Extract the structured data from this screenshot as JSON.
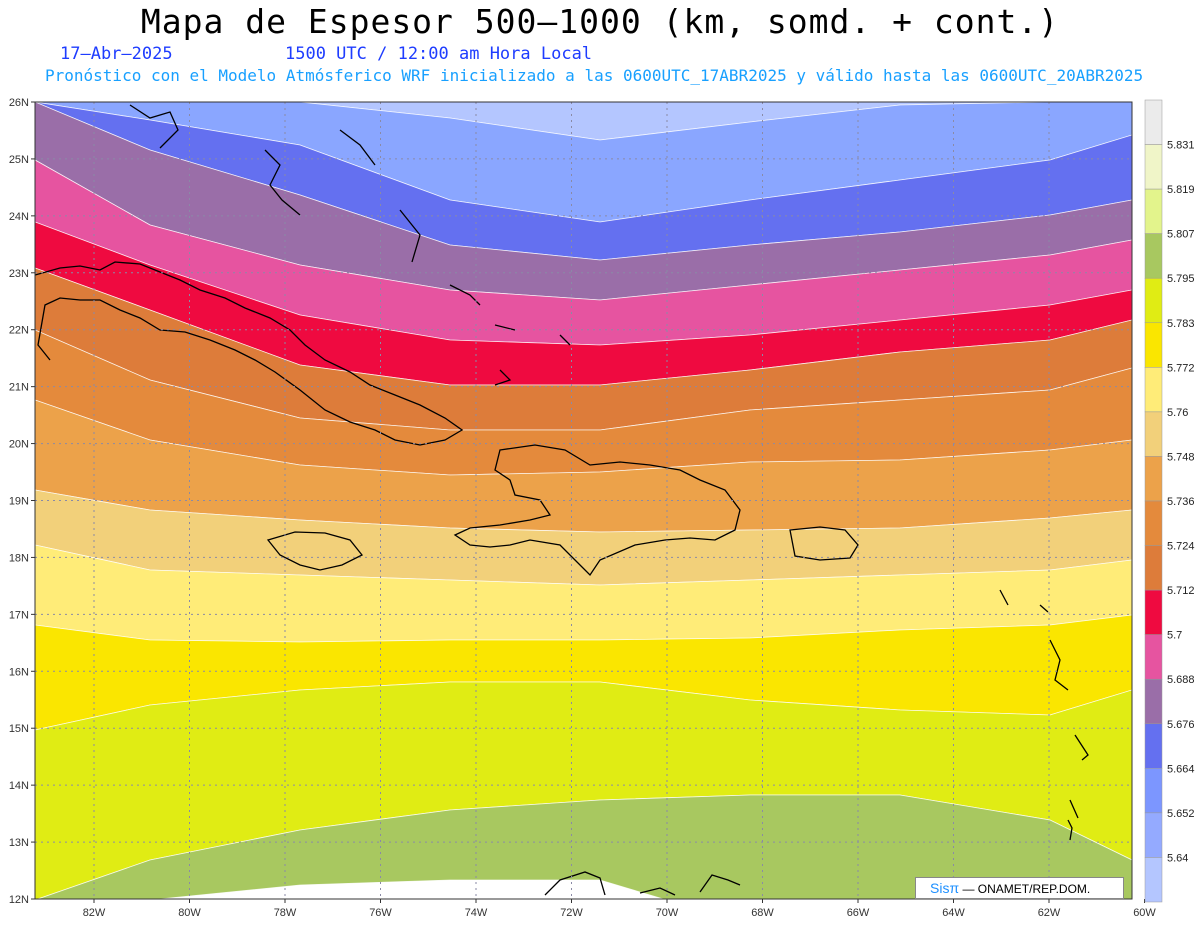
{
  "title": "Mapa de Espesor 500—1000 (km, somd. + cont.)",
  "date_label": "17—Abr—2025",
  "time_label": "1500 UTC / 12:00 am Hora Local",
  "forecast_label": "Pronóstico con el Modelo Atmósferico WRF inicializado a las 0600UTC_17ABR2025 y válido hasta las  0600UTC_20ABR2025",
  "credit": {
    "brand": "Sisπ",
    "text": "— ONAMET/REP.DOM."
  },
  "map": {
    "lat_labels": [
      "26N",
      "25N",
      "24N",
      "23N",
      "22N",
      "21N",
      "20N",
      "19N",
      "18N",
      "17N",
      "16N",
      "15N",
      "14N",
      "13N",
      "12N"
    ],
    "lon_labels": [
      "82W",
      "80W",
      "78W",
      "76W",
      "74W",
      "72W",
      "70W",
      "68W",
      "66W",
      "64W",
      "62W",
      "60W"
    ]
  },
  "colorbar": {
    "labels": [
      "5.831",
      "5.819",
      "5.807",
      "5.795",
      "5.783",
      "5.772",
      "5.76",
      "5.748",
      "5.736",
      "5.724",
      "5.712",
      "5.7",
      "5.688",
      "5.676",
      "5.664",
      "5.652",
      "5.64"
    ],
    "colors": [
      "#ebebeb",
      "#f0f5c8",
      "#e3f48c",
      "#a8c860",
      "#e0ec14",
      "#fae600",
      "#ffec78",
      "#f2d07a",
      "#eca24a",
      "#e48a3c",
      "#dd7c3a",
      "#ef0a40",
      "#e654a0",
      "#9a6ea8",
      "#6470f0",
      "#7c96ff",
      "#94aaff",
      "#b4c6ff"
    ]
  },
  "bands": [
    {
      "name": "5.640-5.652",
      "color": "#b4c6ff"
    },
    {
      "name": "5.652-5.664",
      "color": "#8aa6ff"
    },
    {
      "name": "5.664-5.676",
      "color": "#6470f0"
    },
    {
      "name": "5.676-5.688",
      "color": "#9a6ea8"
    },
    {
      "name": "5.688-5.700",
      "color": "#e654a0"
    },
    {
      "name": "5.700-5.712",
      "color": "#ef0a40"
    },
    {
      "name": "5.712-5.724",
      "color": "#dd7c3a"
    },
    {
      "name": "5.724-5.736",
      "color": "#e48a3c"
    },
    {
      "name": "5.736-5.748",
      "color": "#eca24a"
    },
    {
      "name": "5.748-5.760",
      "color": "#f2d07a"
    },
    {
      "name": "5.760-5.772",
      "color": "#ffec78"
    },
    {
      "name": "5.772-5.783",
      "color": "#fae600"
    },
    {
      "name": "5.783-5.795",
      "color": "#e0ec14"
    },
    {
      "name": "5.795-5.807",
      "color": "#a8c860"
    }
  ]
}
